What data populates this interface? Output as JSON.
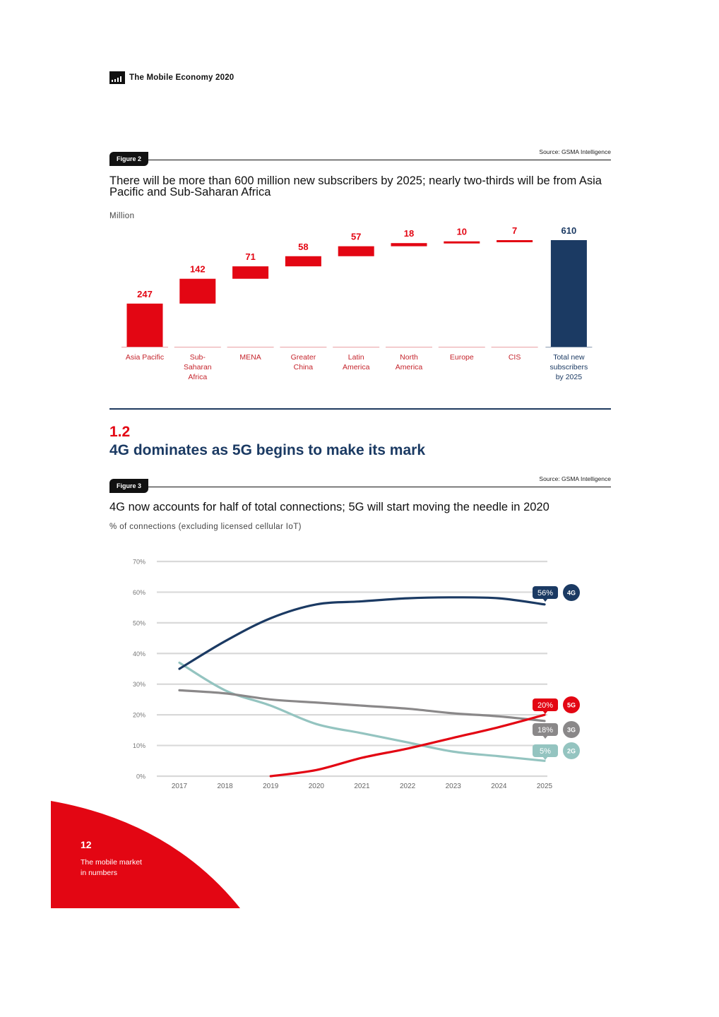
{
  "header": {
    "title": "The Mobile Economy 2020",
    "logo_icon": "gsma-logo-icon"
  },
  "figure2": {
    "badge": "Figure 2",
    "source": "Source: GSMA Intelligence",
    "title": "There will be more than 600 million new subscribers by 2025; nearly two-thirds will be from Asia Pacific and Sub-Saharan Africa",
    "units": "Million"
  },
  "section": {
    "number": "1.2",
    "title": "4G dominates as 5G begins to make its mark"
  },
  "figure3": {
    "badge": "Figure 3",
    "source": "Source: GSMA Intelligence",
    "title": "4G now accounts for half of total connections; 5G will start moving the needle in 2020",
    "units": "% of connections (excluding licensed cellular IoT)"
  },
  "footer": {
    "page_number": "12",
    "section_label_line1": "The mobile market",
    "section_label_line2": "in numbers"
  },
  "colors": {
    "red": "#e30613",
    "navy": "#1b3a63",
    "gray": "#8a8889",
    "teal": "#94c4c0",
    "grid": "#d9d9d9"
  },
  "chart_data": [
    {
      "type": "bar",
      "subtype": "waterfall",
      "title": "There will be more than 600 million new subscribers by 2025; nearly two-thirds will be from Asia Pacific and Sub-Saharan Africa",
      "ylabel": "Million",
      "xlabel": "",
      "categories": [
        [
          "Asia Pacific"
        ],
        [
          "Sub-",
          "Saharan",
          "Africa"
        ],
        [
          "MENA"
        ],
        [
          "Greater",
          "China"
        ],
        [
          "Latin",
          "America"
        ],
        [
          "North",
          "America"
        ],
        [
          "Europe"
        ],
        [
          "CIS"
        ],
        [
          "Total new",
          "subscribers",
          "by 2025"
        ]
      ],
      "values": [
        247,
        142,
        71,
        58,
        57,
        18,
        10,
        7,
        610
      ],
      "total_index": 8,
      "ylim": [
        0,
        610
      ],
      "grid": false,
      "legend": "none"
    },
    {
      "type": "line",
      "title": "4G now accounts for half of total connections; 5G will start moving the needle in 2020",
      "ylabel": "% of connections (excluding licensed cellular IoT)",
      "xlabel": "",
      "x": [
        2017,
        2018,
        2019,
        2020,
        2021,
        2022,
        2023,
        2024,
        2025
      ],
      "yticks": [
        "0%",
        "10%",
        "20%",
        "30%",
        "40%",
        "50%",
        "60%",
        "70%"
      ],
      "ylim": [
        0,
        70
      ],
      "grid": true,
      "legend": "right (end-of-line labels)",
      "series": [
        {
          "name": "4G",
          "color": "#1b3a63",
          "values": [
            35,
            44,
            51.5,
            56,
            57,
            58,
            58.3,
            58,
            56
          ],
          "end_label": "56%"
        },
        {
          "name": "5G",
          "color": "#e30613",
          "values": [
            null,
            null,
            0,
            2,
            6,
            9,
            12.5,
            16,
            20
          ],
          "end_label": "20%"
        },
        {
          "name": "3G",
          "color": "#8a8889",
          "values": [
            28,
            27,
            25,
            24,
            23,
            22,
            20.5,
            19.5,
            18
          ],
          "end_label": "18%"
        },
        {
          "name": "2G",
          "color": "#94c4c0",
          "values": [
            37,
            28,
            23,
            17,
            14,
            11,
            8,
            6.5,
            5
          ],
          "end_label": "5%"
        }
      ]
    }
  ]
}
